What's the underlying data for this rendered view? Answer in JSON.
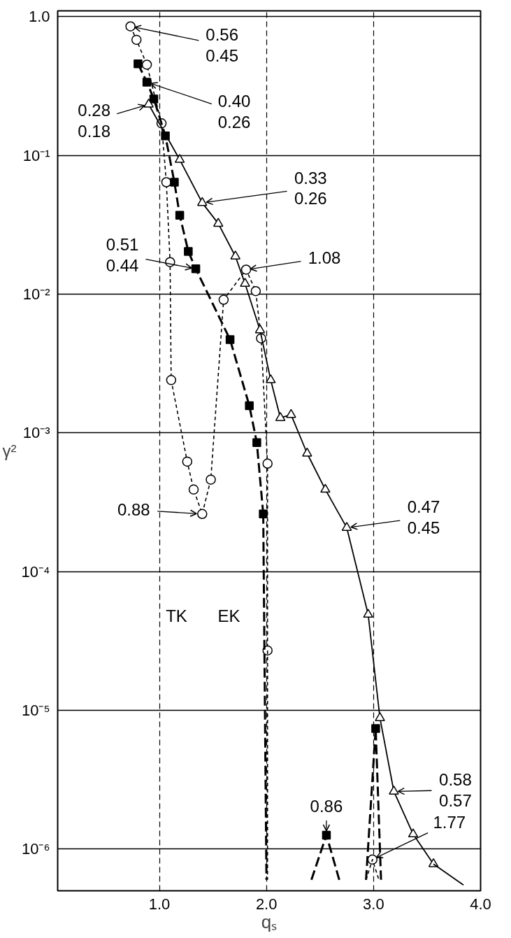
{
  "chart_data": {
    "type": "line",
    "xlabel": "qₛ",
    "ylabel": "γ²",
    "log": "y",
    "grid": true,
    "xlim": [
      0.05,
      4.0
    ],
    "ylim": [
      5e-07,
      1.1
    ],
    "xticks": [
      {
        "value": 1,
        "label": "1.0"
      },
      {
        "value": 2,
        "label": "2.0"
      },
      {
        "value": 3,
        "label": "3.0"
      },
      {
        "value": 4,
        "label": "4.0"
      }
    ],
    "yticks": [
      {
        "value": 1,
        "label": "1.0"
      },
      {
        "value": 0.1,
        "label": "10⁻¹"
      },
      {
        "value": 0.01,
        "label": "10⁻²"
      },
      {
        "value": 0.001,
        "label": "10⁻³"
      },
      {
        "value": 0.0001,
        "label": "10⁻⁴"
      },
      {
        "value": 1e-05,
        "label": "10⁻⁵"
      },
      {
        "value": 1e-06,
        "label": "10⁻⁶"
      }
    ],
    "series": [
      {
        "color": "#000000",
        "marker": "circle",
        "line_style": "dotted",
        "x": [
          0.73,
          0.786,
          0.883,
          1.02,
          1.065,
          1.1,
          1.11,
          1.26,
          1.32,
          1.4,
          1.48,
          1.6,
          1.81,
          1.9,
          1.95,
          2.01,
          2.01,
          2.5,
          2.99
        ],
        "values": [
          0.85,
          0.68,
          0.45,
          0.17,
          0.064,
          0.017,
          0.0024,
          0.00062,
          0.00039,
          0.00026,
          0.00046,
          0.0091,
          0.015,
          0.0105,
          0.0048,
          0.0006,
          2.7e-05,
          null,
          8.4e-07
        ]
      },
      {
        "color": "#000000",
        "marker": "none",
        "line_style": "dotted",
        "x": [
          2.01,
          2.01
        ],
        "values": [
          2.7e-05,
          6e-07
        ]
      },
      {
        "color": "#000000",
        "marker": "none",
        "line_style": "dotted",
        "x": [
          2.93,
          2.99,
          3.05
        ],
        "values": [
          6e-07,
          8.4e-07,
          6e-07
        ]
      },
      {
        "color": "#000000",
        "marker": "square",
        "line_style": "dashed",
        "x": [
          0.8,
          0.883,
          0.948,
          1.056,
          1.14,
          1.19,
          1.27,
          1.34,
          1.66,
          1.84,
          1.91,
          1.97,
          2.3,
          2.56,
          2.8,
          3.02
        ],
        "values": [
          0.457,
          0.337,
          0.255,
          0.138,
          0.064,
          0.037,
          0.0203,
          0.0152,
          0.0047,
          0.00157,
          0.00085,
          0.00026,
          null,
          1.26e-06,
          null,
          7.4e-06
        ]
      },
      {
        "color": "#000000",
        "marker": "none",
        "line_style": "dashed",
        "x": [
          1.97,
          2.0
        ],
        "values": [
          0.00026,
          6e-07
        ]
      },
      {
        "color": "#000000",
        "marker": "none",
        "line_style": "dashed",
        "x": [
          2.42,
          2.56,
          2.68
        ],
        "values": [
          6e-07,
          1.26e-06,
          6e-07
        ]
      },
      {
        "color": "#000000",
        "marker": "none",
        "line_style": "dashed",
        "x": [
          2.93,
          3.02,
          3.07
        ],
        "values": [
          6e-07,
          7.4e-06,
          6e-07
        ]
      },
      {
        "color": "#000000",
        "marker": "triangle",
        "line_style": "solid",
        "x": [
          0.9,
          1.19,
          1.4,
          1.55,
          1.71,
          1.8,
          1.94,
          2.04,
          2.13,
          2.23,
          2.38,
          2.55,
          2.75,
          2.95,
          3.06,
          3.19,
          3.37,
          3.56
        ],
        "values": [
          0.233,
          0.093,
          0.0455,
          0.0322,
          0.0187,
          0.0119,
          0.0055,
          0.0024,
          0.00128,
          0.00135,
          0.00071,
          0.00039,
          0.000207,
          4.9e-05,
          8.8e-06,
          2.6e-06,
          1.28e-06,
          7.8e-07
        ]
      },
      {
        "color": "#000000",
        "marker": "none",
        "line_style": "solid",
        "x": [
          3.56,
          3.84
        ],
        "values": [
          7.8e-07,
          5.5e-07
        ]
      }
    ],
    "annotations": [
      {
        "text": "0.56\n0.45",
        "x": 0.73,
        "y": 0.85
      },
      {
        "text": "0.40\n0.26",
        "x": 0.883,
        "y": 0.337
      },
      {
        "text": "0.28\n0.18",
        "x": 0.9,
        "y": 0.233
      },
      {
        "text": "0.33\n0.26",
        "x": 1.4,
        "y": 0.0455
      },
      {
        "text": "0.51\n0.44",
        "x": 1.34,
        "y": 0.0152
      },
      {
        "text": "1.08",
        "x": 1.81,
        "y": 0.015
      },
      {
        "text": "0.88",
        "x": 1.4,
        "y": 0.00026
      },
      {
        "text": "0.47\n0.45",
        "x": 2.75,
        "y": 0.000207
      },
      {
        "text": "0.86",
        "x": 2.56,
        "y": 1.26e-06
      },
      {
        "text": "0.58\n0.57",
        "x": 3.19,
        "y": 2.6e-06
      },
      {
        "text": "1.77",
        "x": 2.99,
        "y": 8.4e-07
      },
      "TK",
      "EK"
    ]
  }
}
